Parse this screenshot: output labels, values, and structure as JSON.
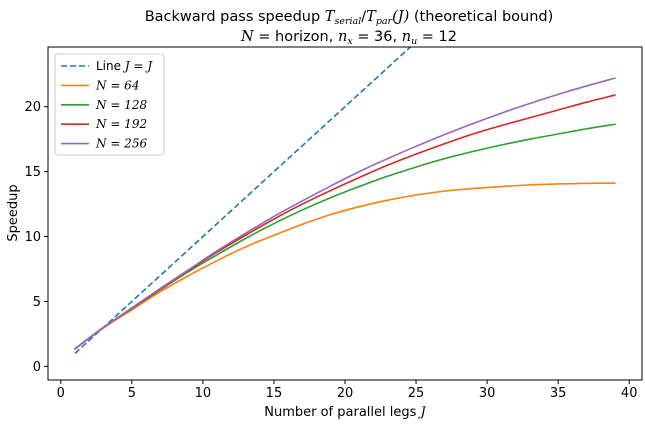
{
  "chart_data": {
    "type": "line",
    "title": {
      "main": "Backward pass speedup ",
      "expr_T": "T",
      "expr_serial": "serial",
      "expr_slash": "/",
      "expr_par": "par",
      "expr_J": "(J)",
      "tail": " (theoretical bound)"
    },
    "subtitle": {
      "N": "N",
      "eq_horizon": " = horizon, ",
      "nx_n": "n",
      "nx_sub": "x",
      "nx_val": " = 36, ",
      "nu_n": "n",
      "nu_sub": "u",
      "nu_val": " = 12"
    },
    "xlabel": "Number of parallel legs ",
    "xlabel_var": "J",
    "ylabel": "Speedup",
    "xlim": [
      -0.9,
      40.9
    ],
    "ylim": [
      -1.05,
      24.6
    ],
    "xticks": [
      0,
      5,
      10,
      15,
      20,
      25,
      30,
      35,
      40
    ],
    "yticks": [
      0,
      5,
      10,
      15,
      20
    ],
    "grid": false,
    "legend_position": "top-left",
    "x": [
      1,
      3,
      5,
      7,
      9,
      11,
      13,
      15,
      17,
      19,
      21,
      23,
      25,
      27,
      29,
      31,
      33,
      35,
      37,
      39
    ],
    "series": [
      {
        "label_prefix": "Line ",
        "label_expr": "J = J",
        "color": "#1f77b4",
        "style": "dashed",
        "x": [
          1,
          25
        ],
        "values": [
          1,
          25
        ]
      },
      {
        "label_expr": "N = 64",
        "color": "#ff7f0e",
        "style": "solid",
        "values": [
          1.35,
          2.95,
          4.35,
          5.75,
          7.0,
          8.15,
          9.2,
          10.1,
          10.95,
          11.7,
          12.3,
          12.8,
          13.2,
          13.5,
          13.7,
          13.85,
          13.98,
          14.05,
          14.1,
          14.12
        ]
      },
      {
        "label_expr": "N = 128",
        "color": "#2ca02c",
        "style": "solid",
        "values": [
          1.35,
          3.0,
          4.45,
          5.9,
          7.3,
          8.6,
          9.85,
          11.0,
          12.05,
          13.0,
          13.85,
          14.65,
          15.35,
          16.0,
          16.55,
          17.05,
          17.5,
          17.9,
          18.3,
          18.65
        ]
      },
      {
        "label_expr": "N = 192",
        "color": "#d62728",
        "style": "solid",
        "values": [
          1.35,
          3.0,
          4.48,
          5.95,
          7.4,
          8.8,
          10.1,
          11.35,
          12.5,
          13.55,
          14.55,
          15.5,
          16.35,
          17.15,
          17.9,
          18.55,
          19.15,
          19.75,
          20.35,
          20.9
        ]
      },
      {
        "label_expr": "N = 256",
        "color": "#9467bd",
        "style": "solid",
        "values": [
          1.35,
          3.0,
          4.5,
          6.0,
          7.45,
          8.9,
          10.25,
          11.55,
          12.75,
          13.9,
          15.0,
          16.0,
          16.95,
          17.85,
          18.7,
          19.5,
          20.25,
          20.95,
          21.6,
          22.2
        ]
      }
    ]
  }
}
